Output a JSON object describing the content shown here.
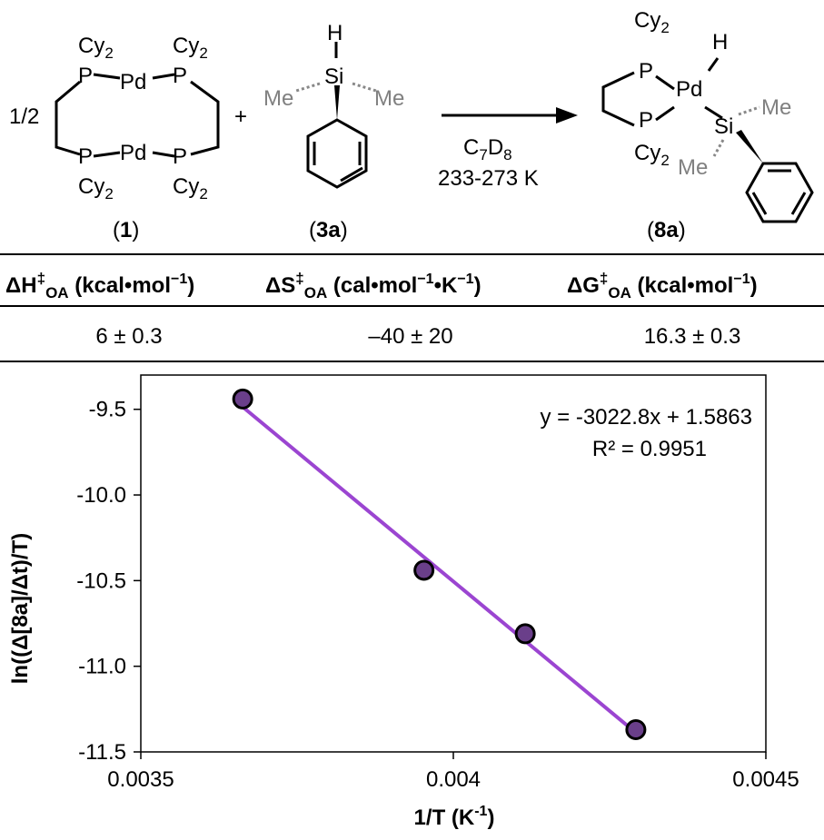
{
  "scheme": {
    "reactant1": {
      "label_open": "(",
      "label_num": "1",
      "label_close": ")",
      "coef": "1/2",
      "P": "P",
      "Pd": "Pd",
      "Cy": "Cy",
      "sub2": "2"
    },
    "plus": "+",
    "reactant2": {
      "label_open": "(",
      "label_num": "3a",
      "label_close": ")",
      "H": "H",
      "Si": "Si",
      "Me": "Me"
    },
    "conditions": {
      "solvent_C": "C",
      "solvent_sub1": "7",
      "solvent_D": "D",
      "solvent_sub2": "8",
      "temperature": "233-273 K"
    },
    "product": {
      "label_open": "(",
      "label_num": "8a",
      "label_close": ")",
      "P": "P",
      "Pd": "Pd",
      "H": "H",
      "Si": "Si",
      "Me": "Me",
      "Cy": "Cy",
      "sub2": "2"
    }
  },
  "table": {
    "headers": [
      {
        "sym": "ΔH",
        "sup": "‡",
        "sub": "OA",
        "unit": " (kcal•mol",
        "usup": "−1",
        "uend": ")"
      },
      {
        "sym": "ΔS",
        "sup": "‡",
        "sub": "OA",
        "unit": " (cal•mol",
        "usup": "−1",
        "umid": "•K",
        "usup2": "−1",
        "uend": ")"
      },
      {
        "sym": "ΔG",
        "sup": "‡",
        "sub": "OA",
        "unit": " (kcal•mol",
        "usup": "−1",
        "uend": ")"
      }
    ],
    "values": [
      "6 ± 0.3",
      "–40 ± 20",
      "16.3 ± 0.3"
    ]
  },
  "chart_data": {
    "type": "scatter",
    "xlabel_main": "1/T (K",
    "xlabel_sup": "-1",
    "xlabel_end": ")",
    "ylabel": "ln((Δ[8a]/Δt)/T)",
    "xlim": [
      0.0035,
      0.0045
    ],
    "ylim": [
      -11.5,
      -9.3
    ],
    "xticks": [
      0.0035,
      0.004,
      0.0045
    ],
    "xtick_labels": [
      "0.0035",
      "0.004",
      "0.0045"
    ],
    "yticks": [
      -9.5,
      -10.0,
      -10.5,
      -11.0,
      -11.5
    ],
    "ytick_labels": [
      "-9.5",
      "-10.0",
      "-10.5",
      "-11.0",
      "-11.5"
    ],
    "x": [
      0.003663,
      0.003953,
      0.004115,
      0.004292
    ],
    "y": [
      -9.44,
      -10.44,
      -10.81,
      -11.37
    ],
    "trendline": {
      "slope": -3022.8,
      "intercept": 1.5863,
      "x_range": [
        0.003663,
        0.004292
      ]
    },
    "equation": "y = -3022.8x + 1.5863",
    "r2": "R² = 0.9951",
    "colors": {
      "line": "#9b45d1",
      "marker": "#6a3f8a",
      "marker_edge": "#000000"
    },
    "grid": false
  }
}
